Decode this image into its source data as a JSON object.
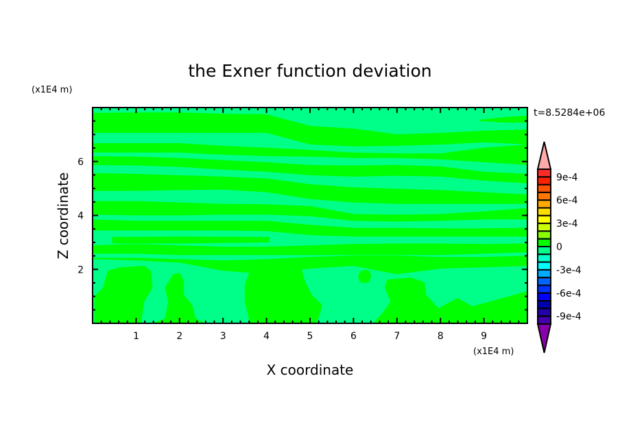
{
  "chart_data": {
    "type": "heatmap",
    "subtype": "filled-contour",
    "title": "the Exner function deviation",
    "xlabel": "X coordinate",
    "ylabel": "Z coordinate",
    "x_unit": "(x1E4 m)",
    "y_unit": "(x1E4 m)",
    "time_label": "t=8.5284e+06",
    "xlim": [
      0,
      10
    ],
    "ylim": [
      0,
      8
    ],
    "x_ticks": [
      1,
      2,
      3,
      4,
      5,
      6,
      7,
      8,
      9
    ],
    "x_tick_labels": [
      "1",
      "2",
      "3",
      "4",
      "5",
      "6",
      "7",
      "8",
      "9"
    ],
    "y_ticks": [
      2,
      4,
      6
    ],
    "y_tick_labels": [
      "2",
      "4",
      "6"
    ],
    "x_minor_step": 0.2,
    "y_minor_step": 0.5,
    "grid": false,
    "colorbar": {
      "levels_min": -0.001,
      "levels_max": 0.001,
      "level_step": 0.0001,
      "labels": [
        {
          "value": 0.0009,
          "text": "9e-4"
        },
        {
          "value": 0.0006,
          "text": "6e-4"
        },
        {
          "value": 0.0003,
          "text": "3e-4"
        },
        {
          "value": 0,
          "text": "0"
        },
        {
          "value": -0.0003,
          "text": "-3e-4"
        },
        {
          "value": -0.0006,
          "text": "-6e-4"
        },
        {
          "value": -0.0009,
          "text": "-9e-4"
        }
      ],
      "colors_top_to_bottom": [
        "#ff2a2a",
        "#ff2200",
        "#ff5500",
        "#ff7700",
        "#ffaa00",
        "#ffdd00",
        "#ffff00",
        "#ccff00",
        "#88ff00",
        "#00ff00",
        "#00ff88",
        "#00ffcc",
        "#00ffff",
        "#00aaff",
        "#0066ff",
        "#0033ff",
        "#0000ff",
        "#0000aa",
        "#2200aa",
        "#4400aa"
      ],
      "over_color": "#ffaaaa",
      "under_color": "#8800aa",
      "position": "right"
    },
    "background_level_color": "#00ff88",
    "positive_level_color": "#00ff00",
    "field_description_levels": [
      "-1e-4 to 0",
      "0 to 1e-4"
    ],
    "positive_bands": [
      {
        "x": [
          0,
          1,
          2,
          3,
          4,
          5,
          6,
          7,
          8,
          9,
          10
        ],
        "top": [
          7.8,
          7.82,
          7.82,
          7.77,
          7.75,
          7.32,
          7.22,
          7.01,
          7.06,
          7.14,
          7.19
        ],
        "bottom": [
          7.06,
          7.06,
          7.06,
          7.06,
          7.06,
          6.63,
          6.56,
          6.58,
          6.63,
          6.71,
          6.63
        ]
      },
      {
        "x": [
          8.9,
          9.5,
          10
        ],
        "top": [
          7.55,
          7.65,
          7.7
        ],
        "bottom": [
          7.5,
          7.44,
          7.44
        ]
      },
      {
        "x": [
          0,
          1,
          2,
          3,
          4,
          5,
          6,
          7,
          8,
          9,
          10
        ],
        "top": [
          6.68,
          6.68,
          6.68,
          6.58,
          6.51,
          6.43,
          6.33,
          6.3,
          6.3,
          6.51,
          6.63
        ],
        "bottom": [
          6.33,
          6.33,
          6.33,
          6.25,
          6.2,
          6.18,
          6.13,
          6.13,
          6.08,
          5.97,
          5.87
        ]
      },
      {
        "x": [
          0,
          1,
          2,
          3,
          4,
          5,
          6,
          7,
          8,
          9,
          10
        ],
        "top": [
          6.2,
          6.18,
          6.13,
          6.05,
          5.97,
          5.87,
          5.85,
          5.87,
          5.82,
          5.62,
          5.54
        ],
        "bottom": [
          5.87,
          5.85,
          5.8,
          5.7,
          5.62,
          5.49,
          5.44,
          5.47,
          5.44,
          5.29,
          5.19
        ]
      },
      {
        "x": [
          0,
          1,
          2,
          3,
          4,
          5,
          6,
          7,
          8,
          9,
          10
        ],
        "top": [
          5.57,
          5.54,
          5.49,
          5.44,
          5.37,
          5.16,
          5.04,
          4.99,
          4.94,
          4.86,
          4.78
        ],
        "bottom": [
          4.91,
          4.91,
          4.94,
          4.96,
          4.86,
          4.61,
          4.48,
          4.43,
          4.43,
          4.43,
          4.43
        ]
      },
      {
        "x": [
          0,
          1,
          2,
          3,
          4,
          5,
          6,
          7,
          8,
          9,
          10
        ],
        "top": [
          4.53,
          4.53,
          4.48,
          4.43,
          4.41,
          4.35,
          4.05,
          4.03,
          4.05,
          4.15,
          4.28
        ],
        "bottom": [
          4.03,
          4.0,
          4.0,
          4.03,
          4.03,
          3.97,
          3.8,
          3.77,
          3.8,
          3.85,
          3.85
        ]
      },
      {
        "x": [
          0,
          1,
          2,
          3,
          4,
          5,
          6,
          7,
          8,
          9,
          10
        ],
        "top": [
          3.85,
          3.8,
          3.8,
          3.8,
          3.8,
          3.65,
          3.54,
          3.54,
          3.52,
          3.52,
          3.54
        ],
        "bottom": [
          3.44,
          3.44,
          3.44,
          3.44,
          3.42,
          3.27,
          3.22,
          3.22,
          3.22,
          3.22,
          3.22
        ]
      },
      {
        "x": [
          0.45,
          2,
          4.07
        ],
        "top": [
          3.2,
          3.22,
          3.2
        ],
        "bottom": [
          2.96,
          2.96,
          3.0
        ]
      },
      {
        "x": [
          0,
          1,
          2,
          3,
          4,
          5,
          6,
          7,
          8,
          9,
          10
        ],
        "top": [
          2.89,
          2.94,
          2.89,
          2.84,
          2.84,
          2.89,
          2.94,
          2.96,
          2.96,
          2.94,
          2.96
        ],
        "bottom": [
          2.58,
          2.58,
          2.53,
          2.53,
          2.53,
          2.53,
          2.53,
          2.53,
          2.53,
          2.58,
          2.63
        ]
      },
      {
        "x": [
          0,
          1,
          2,
          3,
          4,
          5,
          6,
          7,
          8,
          9,
          10
        ],
        "top": [
          2.43,
          2.43,
          2.38,
          2.33,
          2.38,
          2.46,
          2.51,
          2.51,
          2.46,
          2.46,
          2.51
        ],
        "bottom": [
          2.38,
          2.33,
          2.25,
          1.95,
          1.82,
          2.03,
          2.13,
          1.82,
          2.03,
          2.08,
          2.13
        ]
      }
    ],
    "positive_regions": [
      [
        [
          0.04,
          0
        ],
        [
          0.04,
          1.01
        ],
        [
          0.24,
          1.32
        ],
        [
          0.35,
          1.95
        ],
        [
          0.64,
          2.08
        ],
        [
          1.19,
          2.13
        ],
        [
          1.34,
          1.95
        ],
        [
          1.38,
          1.32
        ],
        [
          1.19,
          0.81
        ],
        [
          1.11,
          0
        ]
      ],
      [
        [
          1.38,
          0
        ],
        [
          1.66,
          0.18
        ],
        [
          1.74,
          0.81
        ],
        [
          1.66,
          1.32
        ],
        [
          1.85,
          1.82
        ],
        [
          2.0,
          1.87
        ],
        [
          2.1,
          1.57
        ],
        [
          2.1,
          1.06
        ],
        [
          2.29,
          0.68
        ],
        [
          2.37,
          0.18
        ],
        [
          2.6,
          0
        ]
      ],
      [
        [
          3.62,
          0
        ],
        [
          3.5,
          0.81
        ],
        [
          3.5,
          1.44
        ],
        [
          3.62,
          1.95
        ],
        [
          4.17,
          2.08
        ],
        [
          4.8,
          2.08
        ],
        [
          4.88,
          1.57
        ],
        [
          5.04,
          1.06
        ],
        [
          5.28,
          0.68
        ],
        [
          5.2,
          0.18
        ],
        [
          5.12,
          0
        ]
      ],
      [
        [
          6.1,
          1.74
        ],
        [
          6.16,
          1.93
        ],
        [
          6.25,
          1.99
        ],
        [
          6.38,
          1.93
        ],
        [
          6.41,
          1.74
        ],
        [
          6.35,
          1.52
        ],
        [
          6.25,
          1.49
        ],
        [
          6.14,
          1.55
        ]
      ],
      [
        [
          6.45,
          0
        ],
        [
          6.69,
          0.43
        ],
        [
          6.85,
          0.81
        ],
        [
          6.72,
          1.32
        ],
        [
          6.77,
          1.62
        ],
        [
          7.32,
          1.7
        ],
        [
          7.63,
          1.52
        ],
        [
          7.67,
          1.06
        ],
        [
          7.95,
          0.56
        ],
        [
          8.39,
          0.94
        ],
        [
          8.73,
          0.63
        ],
        [
          10,
          1.19
        ],
        [
          10,
          0
        ]
      ]
    ]
  }
}
